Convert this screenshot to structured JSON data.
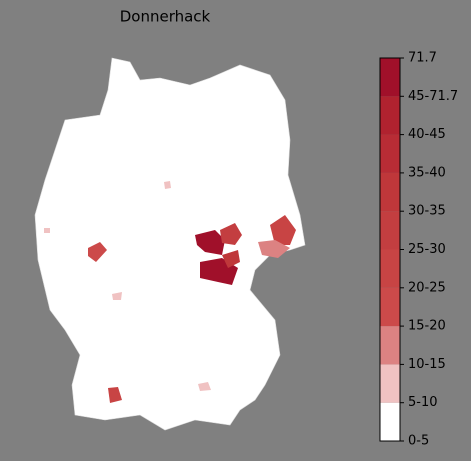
{
  "title": "Donnerhack",
  "colorbar": {
    "labels": [
      "0-5",
      "5-10",
      "10-15",
      "15-20",
      "20-25",
      "25-30",
      "30-35",
      "35-40",
      "40-45",
      "45-71.7",
      "71.7"
    ],
    "colors": [
      "#ffffff",
      "#f0c2c2",
      "#dc8282",
      "#cc4a4a",
      "#c84444",
      "#c33e40",
      "#bf373a",
      "#b82c35",
      "#b0222f",
      "#a0102a"
    ]
  }
}
